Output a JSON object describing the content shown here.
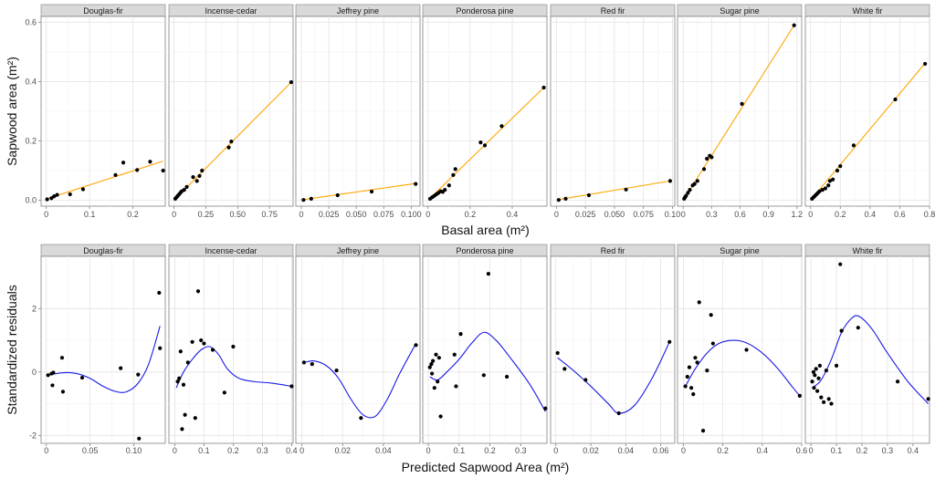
{
  "chart_data": [
    {
      "type": "scatter",
      "title": "",
      "xlabel": "Basal area (m²)",
      "ylabel": "Sapwood area (m²)",
      "ylim": [
        -0.02,
        0.62
      ],
      "ytick_labels": [
        "0.0",
        "0.2",
        "0.4",
        "0.6"
      ],
      "ytick_values": [
        0,
        0.2,
        0.4,
        0.6
      ],
      "grid": true,
      "fit": "linear",
      "fit_color": "#FFA500",
      "point_color": "#000000",
      "panels": [
        {
          "name": "Douglas-fir",
          "xlim": [
            -0.012,
            0.275
          ],
          "xticks": [
            0,
            0.1,
            0.2
          ],
          "xtick_labels": [
            "0",
            "0.1",
            "0.2"
          ],
          "x": [
            0.002,
            0.012,
            0.018,
            0.025,
            0.055,
            0.085,
            0.16,
            0.178,
            0.21,
            0.24,
            0.27
          ],
          "y": [
            0.003,
            0.007,
            0.013,
            0.018,
            0.02,
            0.037,
            0.085,
            0.127,
            0.102,
            0.13,
            0.1
          ],
          "fit_line": [
            [
              0,
              0.004
            ],
            [
              0.27,
              0.132
            ]
          ]
        },
        {
          "name": "Incense-cedar",
          "xlim": [
            -0.04,
            0.935
          ],
          "xticks": [
            0,
            0.25,
            0.5,
            0.75
          ],
          "xtick_labels": [
            "0",
            "0.25",
            "0.50",
            "0.75"
          ],
          "x": [
            0.01,
            0.02,
            0.03,
            0.04,
            0.05,
            0.06,
            0.08,
            0.1,
            0.15,
            0.18,
            0.2,
            0.22,
            0.43,
            0.45,
            0.92
          ],
          "y": [
            0.005,
            0.01,
            0.015,
            0.02,
            0.025,
            0.03,
            0.035,
            0.045,
            0.078,
            0.065,
            0.082,
            0.1,
            0.178,
            0.198,
            0.398
          ],
          "fit_line": [
            [
              0,
              0.0
            ],
            [
              0.92,
              0.398
            ]
          ]
        },
        {
          "name": "Jeffrey pine",
          "xlim": [
            -0.005,
            0.108
          ],
          "xticks": [
            0,
            0.025,
            0.05,
            0.075,
            0.1
          ],
          "xtick_labels": [
            "0",
            "0.025",
            "0.050",
            "0.075",
            "0.100"
          ],
          "x": [
            0.002,
            0.009,
            0.033,
            0.064,
            0.104
          ],
          "y": [
            0.001,
            0.005,
            0.017,
            0.029,
            0.055
          ],
          "fit_line": [
            [
              0,
              0.001
            ],
            [
              0.105,
              0.057
            ]
          ]
        },
        {
          "name": "Ponderosa pine",
          "xlim": [
            -0.025,
            0.565
          ],
          "xticks": [
            0,
            0.2,
            0.4
          ],
          "xtick_labels": [
            "0",
            "0.2",
            "0.4"
          ],
          "x": [
            0.01,
            0.02,
            0.03,
            0.04,
            0.05,
            0.06,
            0.07,
            0.08,
            0.1,
            0.12,
            0.13,
            0.25,
            0.27,
            0.35,
            0.55
          ],
          "y": [
            0.005,
            0.01,
            0.015,
            0.02,
            0.025,
            0.03,
            0.028,
            0.035,
            0.05,
            0.085,
            0.105,
            0.195,
            0.185,
            0.25,
            0.38
          ],
          "fit_line": [
            [
              0,
              0.0
            ],
            [
              0.55,
              0.38
            ]
          ]
        },
        {
          "name": "Red fir",
          "xlim": [
            -0.005,
            0.102
          ],
          "xticks": [
            0,
            0.025,
            0.05,
            0.075,
            0.1
          ],
          "xtick_labels": [
            "0",
            "0.025",
            "0.050",
            "0.075",
            "0.10"
          ],
          "x": [
            0.002,
            0.008,
            0.028,
            0.06,
            0.098
          ],
          "y": [
            0.001,
            0.005,
            0.017,
            0.036,
            0.065
          ],
          "fit_line": [
            [
              0,
              0.001
            ],
            [
              0.098,
              0.065
            ]
          ]
        },
        {
          "name": "Sugar pine",
          "xlim": [
            -0.06,
            1.25
          ],
          "xticks": [
            0,
            0.3,
            0.6,
            0.9,
            1.2
          ],
          "xtick_labels": [
            "0",
            "0.3",
            "0.6",
            "0.9",
            "1.2"
          ],
          "x": [
            0.01,
            0.02,
            0.03,
            0.05,
            0.07,
            0.1,
            0.12,
            0.15,
            0.22,
            0.25,
            0.28,
            0.3,
            0.62,
            1.17
          ],
          "y": [
            0.005,
            0.01,
            0.015,
            0.025,
            0.035,
            0.05,
            0.055,
            0.065,
            0.105,
            0.14,
            0.15,
            0.145,
            0.325,
            0.59
          ],
          "fit_line": [
            [
              0,
              0.0
            ],
            [
              1.17,
              0.59
            ]
          ]
        },
        {
          "name": "White fir",
          "xlim": [
            -0.035,
            0.8
          ],
          "xticks": [
            0,
            0.2,
            0.4,
            0.6,
            0.8
          ],
          "xtick_labels": [
            "0",
            "0.2",
            "0.4",
            "0.6",
            "0.8"
          ],
          "x": [
            0.01,
            0.02,
            0.03,
            0.04,
            0.05,
            0.06,
            0.08,
            0.1,
            0.12,
            0.13,
            0.15,
            0.18,
            0.2,
            0.29,
            0.57,
            0.77
          ],
          "y": [
            0.005,
            0.01,
            0.015,
            0.02,
            0.025,
            0.03,
            0.035,
            0.04,
            0.05,
            0.065,
            0.07,
            0.1,
            0.115,
            0.185,
            0.34,
            0.46
          ],
          "fit_line": [
            [
              0,
              0.0
            ],
            [
              0.77,
              0.462
            ]
          ]
        }
      ]
    },
    {
      "type": "scatter",
      "title": "",
      "xlabel": "Predicted Sapwood Area (m²)",
      "ylabel": "Standardized residuals",
      "ylim": [
        -2.25,
        3.65
      ],
      "ytick_labels": [
        "-2",
        "0",
        "2"
      ],
      "ytick_values": [
        -2,
        0,
        2
      ],
      "grid": true,
      "fit": "smooth",
      "fit_color": "#1a1ae6",
      "point_color": "#000000",
      "panels": [
        {
          "name": "Douglas-fir",
          "xlim": [
            -0.006,
            0.136
          ],
          "xticks": [
            0,
            0.05,
            0.1
          ],
          "xtick_labels": [
            "0",
            "0.05",
            "0.10"
          ],
          "x": [
            0.002,
            0.006,
            0.007,
            0.008,
            0.018,
            0.019,
            0.041,
            0.085,
            0.105,
            0.106,
            0.129,
            0.13
          ],
          "y": [
            -0.1,
            -0.05,
            -0.42,
            -0.02,
            0.45,
            -0.62,
            -0.18,
            0.12,
            -0.08,
            -2.1,
            2.5,
            0.75
          ],
          "smooth": [
            [
              0.0,
              -0.1
            ],
            [
              0.02,
              -0.02
            ],
            [
              0.035,
              -0.05
            ],
            [
              0.05,
              -0.2
            ],
            [
              0.065,
              -0.45
            ],
            [
              0.08,
              -0.62
            ],
            [
              0.092,
              -0.62
            ],
            [
              0.105,
              -0.35
            ],
            [
              0.117,
              0.25
            ],
            [
              0.13,
              1.45
            ]
          ]
        },
        {
          "name": "Incense-cedar",
          "xlim": [
            -0.02,
            0.405
          ],
          "xticks": [
            0,
            0.1,
            0.2,
            0.3,
            0.4
          ],
          "xtick_labels": [
            "0",
            "0.1",
            "0.2",
            "0.3",
            "0.4"
          ],
          "x": [
            0.01,
            0.015,
            0.02,
            0.025,
            0.03,
            0.035,
            0.045,
            0.06,
            0.07,
            0.08,
            0.09,
            0.1,
            0.13,
            0.17,
            0.2,
            0.4
          ],
          "y": [
            -0.3,
            -0.2,
            0.65,
            -1.8,
            -0.4,
            -1.35,
            0.3,
            0.95,
            -1.45,
            2.55,
            1.0,
            0.9,
            0.7,
            -0.65,
            0.8,
            -0.45
          ],
          "smooth": [
            [
              0.005,
              -0.5
            ],
            [
              0.03,
              0.0
            ],
            [
              0.06,
              0.4
            ],
            [
              0.09,
              0.7
            ],
            [
              0.12,
              0.8
            ],
            [
              0.15,
              0.55
            ],
            [
              0.18,
              0.1
            ],
            [
              0.22,
              -0.2
            ],
            [
              0.27,
              -0.3
            ],
            [
              0.33,
              -0.35
            ],
            [
              0.4,
              -0.45
            ]
          ]
        },
        {
          "name": "Jeffrey pine",
          "xlim": [
            -0.003,
            0.058
          ],
          "xticks": [
            0,
            0.02,
            0.04
          ],
          "xtick_labels": [
            "0",
            "0.02",
            "0.04"
          ],
          "x": [
            0.001,
            0.005,
            0.017,
            0.029,
            0.056
          ],
          "y": [
            0.3,
            0.25,
            0.05,
            -1.45,
            0.85
          ],
          "smooth": [
            [
              0.001,
              0.3
            ],
            [
              0.006,
              0.35
            ],
            [
              0.012,
              0.2
            ],
            [
              0.018,
              -0.2
            ],
            [
              0.024,
              -0.85
            ],
            [
              0.03,
              -1.35
            ],
            [
              0.036,
              -1.4
            ],
            [
              0.042,
              -0.85
            ],
            [
              0.048,
              -0.05
            ],
            [
              0.056,
              0.9
            ]
          ]
        },
        {
          "name": "Ponderosa pine",
          "xlim": [
            -0.018,
            0.385
          ],
          "xticks": [
            0,
            0.1,
            0.2,
            0.3
          ],
          "xtick_labels": [
            "0",
            "0.1",
            "0.2",
            "0.3"
          ],
          "x": [
            0.005,
            0.01,
            0.012,
            0.015,
            0.02,
            0.025,
            0.03,
            0.035,
            0.04,
            0.085,
            0.09,
            0.105,
            0.18,
            0.195,
            0.255,
            0.38
          ],
          "y": [
            0.15,
            0.25,
            -0.05,
            0.35,
            -0.5,
            0.55,
            -0.3,
            0.45,
            -1.4,
            0.55,
            -0.45,
            1.2,
            -0.1,
            3.1,
            -0.15,
            -1.15
          ],
          "smooth": [
            [
              0.005,
              -0.15
            ],
            [
              0.03,
              -0.25
            ],
            [
              0.06,
              0.0
            ],
            [
              0.1,
              0.4
            ],
            [
              0.14,
              0.9
            ],
            [
              0.18,
              1.25
            ],
            [
              0.22,
              1.0
            ],
            [
              0.27,
              0.4
            ],
            [
              0.33,
              -0.4
            ],
            [
              0.38,
              -1.25
            ]
          ]
        },
        {
          "name": "Red fir",
          "xlim": [
            -0.003,
            0.068
          ],
          "xticks": [
            0,
            0.02,
            0.04,
            0.06
          ],
          "xtick_labels": [
            "0",
            "0.02",
            "0.04",
            "0.06"
          ],
          "x": [
            0.001,
            0.005,
            0.017,
            0.036,
            0.065
          ],
          "y": [
            0.6,
            0.1,
            -0.25,
            -1.3,
            0.95
          ],
          "smooth": [
            [
              0.001,
              0.45
            ],
            [
              0.01,
              0.05
            ],
            [
              0.02,
              -0.45
            ],
            [
              0.03,
              -1.0
            ],
            [
              0.036,
              -1.3
            ],
            [
              0.045,
              -1.05
            ],
            [
              0.055,
              -0.2
            ],
            [
              0.065,
              0.95
            ]
          ]
        },
        {
          "name": "Sugar pine",
          "xlim": [
            -0.03,
            0.6
          ],
          "xticks": [
            0,
            0.2,
            0.4,
            0.6
          ],
          "xtick_labels": [
            "0",
            "0.2",
            "0.4",
            "0.6"
          ],
          "x": [
            0.01,
            0.02,
            0.03,
            0.04,
            0.05,
            0.06,
            0.07,
            0.08,
            0.1,
            0.12,
            0.14,
            0.15,
            0.32,
            0.59
          ],
          "y": [
            -0.45,
            -0.15,
            0.15,
            -0.5,
            -0.7,
            0.45,
            0.3,
            2.2,
            -1.85,
            0.05,
            1.8,
            0.9,
            0.7,
            -0.75
          ],
          "smooth": [
            [
              0.01,
              -0.45
            ],
            [
              0.06,
              0.1
            ],
            [
              0.12,
              0.6
            ],
            [
              0.18,
              0.9
            ],
            [
              0.25,
              1.0
            ],
            [
              0.32,
              0.92
            ],
            [
              0.4,
              0.6
            ],
            [
              0.48,
              0.1
            ],
            [
              0.55,
              -0.45
            ],
            [
              0.59,
              -0.75
            ]
          ]
        },
        {
          "name": "White fir",
          "xlim": [
            -0.022,
            0.465
          ],
          "xticks": [
            0,
            0.1,
            0.2,
            0.3,
            0.4
          ],
          "xtick_labels": [
            "0",
            "0.1",
            "0.2",
            "0.3",
            "0.4"
          ],
          "x": [
            0.005,
            0.01,
            0.012,
            0.015,
            0.02,
            0.025,
            0.03,
            0.035,
            0.04,
            0.05,
            0.06,
            0.07,
            0.08,
            0.1,
            0.115,
            0.12,
            0.185,
            0.34,
            0.46
          ],
          "y": [
            -0.3,
            0.0,
            -0.5,
            -0.1,
            0.1,
            -0.6,
            -0.2,
            0.2,
            -0.8,
            -0.95,
            0.05,
            -0.85,
            -1.0,
            0.2,
            3.4,
            1.3,
            1.4,
            -0.3,
            -0.85
          ],
          "smooth": [
            [
              0.005,
              -0.5
            ],
            [
              0.04,
              -0.25
            ],
            [
              0.08,
              0.4
            ],
            [
              0.12,
              1.25
            ],
            [
              0.16,
              1.7
            ],
            [
              0.19,
              1.75
            ],
            [
              0.24,
              1.35
            ],
            [
              0.3,
              0.6
            ],
            [
              0.38,
              -0.3
            ],
            [
              0.46,
              -1.0
            ]
          ]
        }
      ]
    }
  ]
}
